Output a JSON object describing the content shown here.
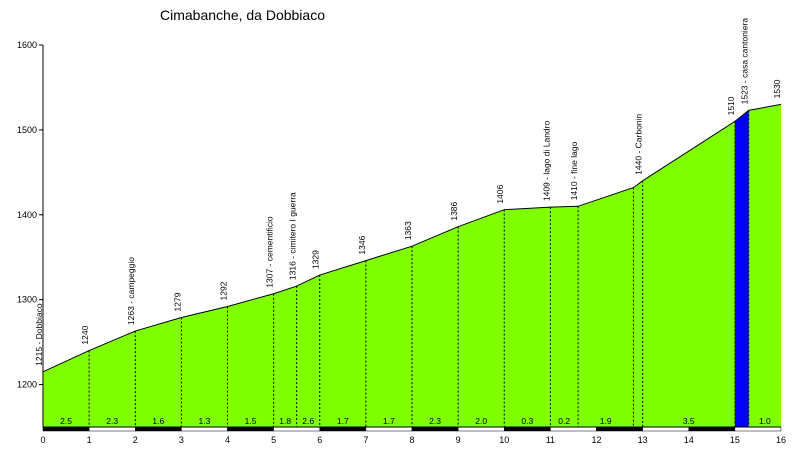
{
  "chart_data": {
    "type": "area",
    "title": "Cimabanche, da Dobbiaco",
    "xlabel": "",
    "ylabel": "",
    "xlim": [
      0,
      16
    ],
    "ylim": [
      1150,
      1600
    ],
    "x_ticks": [
      "0",
      "1",
      "2",
      "3",
      "4",
      "5",
      "6",
      "7",
      "8",
      "9",
      "10",
      "11",
      "12",
      "13",
      "14",
      "15",
      "16"
    ],
    "y_ticks": [
      "1200",
      "1300",
      "1400",
      "1500",
      "1600"
    ],
    "fill_color": "#80ff00",
    "highlight_color": "#0000ff",
    "highlight_range": [
      15,
      15.3
    ],
    "points": [
      {
        "x": 0,
        "y": 1215,
        "label": "1215 - Dobbiaco"
      },
      {
        "x": 1,
        "y": 1240,
        "label": "1240"
      },
      {
        "x": 2,
        "y": 1263,
        "label": "1263 - campeggio"
      },
      {
        "x": 3,
        "y": 1279,
        "label": "1279"
      },
      {
        "x": 4,
        "y": 1292,
        "label": "1292"
      },
      {
        "x": 5,
        "y": 1307,
        "label": "1307 - cementificio"
      },
      {
        "x": 5.5,
        "y": 1316,
        "label": "1316 - cimitero I guerra"
      },
      {
        "x": 6,
        "y": 1329,
        "label": "1329"
      },
      {
        "x": 7,
        "y": 1346,
        "label": "1346"
      },
      {
        "x": 8,
        "y": 1363,
        "label": "1363"
      },
      {
        "x": 9,
        "y": 1386,
        "label": "1386"
      },
      {
        "x": 10,
        "y": 1406,
        "label": "1406"
      },
      {
        "x": 11,
        "y": 1409,
        "label": "1409 - lago di Landro"
      },
      {
        "x": 11.6,
        "y": 1410,
        "label": "1410 - fine lago"
      },
      {
        "x": 12.8,
        "y": 1432,
        "label": ""
      },
      {
        "x": 13,
        "y": 1440,
        "label": "1440 - Carbonin"
      },
      {
        "x": 15,
        "y": 1510,
        "label": "1510"
      },
      {
        "x": 15.3,
        "y": 1523,
        "label": "1523 - casa cantoniera"
      },
      {
        "x": 16,
        "y": 1530,
        "label": "1530"
      }
    ],
    "gradients": [
      {
        "x0": 0,
        "x1": 1,
        "label": "2.5"
      },
      {
        "x0": 1,
        "x1": 2,
        "label": "2.3"
      },
      {
        "x0": 2,
        "x1": 3,
        "label": "1.6"
      },
      {
        "x0": 3,
        "x1": 4,
        "label": "1.3"
      },
      {
        "x0": 4,
        "x1": 5,
        "label": "1.5"
      },
      {
        "x0": 5,
        "x1": 5.5,
        "label": "1.8"
      },
      {
        "x0": 5.5,
        "x1": 6,
        "label": "2.6"
      },
      {
        "x0": 6,
        "x1": 7,
        "label": "1.7"
      },
      {
        "x0": 7,
        "x1": 8,
        "label": "1.7"
      },
      {
        "x0": 8,
        "x1": 9,
        "label": "2.3"
      },
      {
        "x0": 9,
        "x1": 10,
        "label": "2.0"
      },
      {
        "x0": 10,
        "x1": 11,
        "label": "0.3"
      },
      {
        "x0": 11,
        "x1": 11.6,
        "label": "0.2"
      },
      {
        "x0": 11.6,
        "x1": 12.8,
        "label": "1.9"
      },
      {
        "x0": 13,
        "x1": 15,
        "label": "3.5"
      },
      {
        "x0": 15.3,
        "x1": 16,
        "label": "1.0"
      }
    ]
  }
}
